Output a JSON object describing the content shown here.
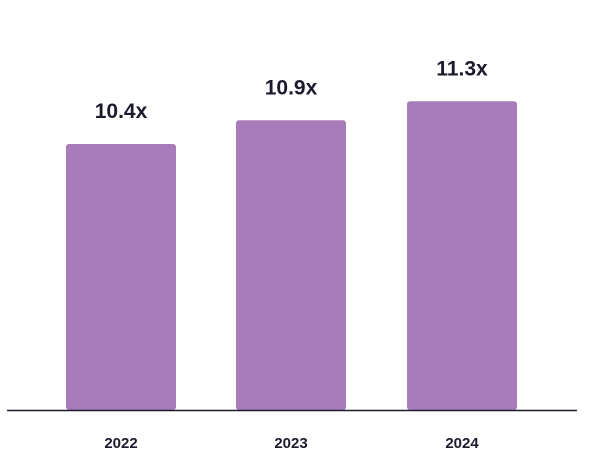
{
  "colors": {
    "bar": "#a87bba",
    "axis": "#1c1b2e",
    "text": "#1c1b2e",
    "background": "#ffffff"
  },
  "chart_data": {
    "type": "bar",
    "title": "",
    "xlabel": "",
    "ylabel": "",
    "categories": [
      "2022",
      "2023",
      "2024"
    ],
    "values": [
      10.4,
      10.9,
      11.3
    ],
    "value_labels": [
      "10.4x",
      "10.9x",
      "11.3x"
    ],
    "ylim": [
      4.8,
      12.0
    ],
    "grid": false,
    "legend": "none"
  }
}
